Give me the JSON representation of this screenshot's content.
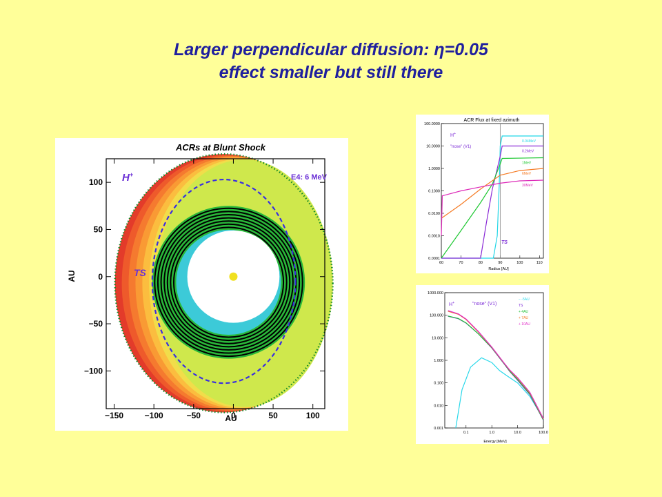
{
  "slide": {
    "title_line1": "Larger perpendicular diffusion: η=0.05",
    "title_line2": "effect smaller but  still there"
  },
  "colors": {
    "background": "#ffff99",
    "title": "#1f1f9e",
    "label_purple": "#6a2fd6",
    "shock_dash": "#3a2ee0"
  },
  "chart_data": [
    {
      "type": "heatmap",
      "title": "ACRs at Blunt Shock",
      "xlabel": "AU",
      "ylabel": "AU",
      "species_label": "H",
      "species_sup": "+",
      "energy_label": "E4: 6 MeV",
      "shock_label": "TS",
      "xlim": [
        -160,
        115
      ],
      "ylim": [
        -140,
        125
      ],
      "x_ticks": [
        "−150",
        "−100",
        "−50",
        "0",
        "50",
        "100"
      ],
      "x_tick_values": [
        -150,
        -100,
        -50,
        0,
        50,
        100
      ],
      "y_ticks": [
        "100",
        "50",
        "0",
        "−50",
        "−100"
      ],
      "y_tick_values": [
        100,
        50,
        0,
        -50,
        -100
      ],
      "sun_position": [
        0,
        0
      ],
      "inner_boundary_radius": 58,
      "termination_shock": {
        "cx": -12,
        "cy": -5,
        "rx": 90,
        "ry": 108
      },
      "outer_boundary": {
        "cx": -12,
        "cy": -7,
        "rx": 137,
        "ry": 137
      },
      "black_contours": {
        "cx": -6,
        "cy": -6,
        "radii": [
          69,
          73,
          77,
          81,
          85,
          89,
          93
        ]
      },
      "color_bands": [
        "#e33b2a",
        "#ee5a2b",
        "#f57a2f",
        "#f99a34",
        "#fbbd3f",
        "#f1dd4a",
        "#cfe84c"
      ],
      "inner_colors": [
        "#2ab83a",
        "#3ccad8"
      ]
    },
    {
      "type": "line",
      "title": "ACR Flux at fixed azimuth",
      "xlabel": "Radius [AU]",
      "ylabel": "",
      "species_label": "H",
      "species_sup": "+",
      "annotation": "\"nose\" (V1)",
      "shock_label": "TS",
      "x_scale": "linear",
      "y_scale": "log",
      "xlim": [
        60,
        112
      ],
      "ylim": [
        0.0001,
        100
      ],
      "x_ticks": [
        "60",
        "70",
        "80",
        "90",
        "100",
        "110"
      ],
      "x_tick_values": [
        60,
        70,
        80,
        90,
        100,
        110
      ],
      "y_ticks": [
        "100.0000",
        "10.0000",
        "1.0000",
        "0.1000",
        "0.0100",
        "0.0010",
        "0.0001"
      ],
      "y_tick_values": [
        100,
        10,
        1,
        0.1,
        0.01,
        0.001,
        0.0001
      ],
      "shock_x": 90,
      "series": [
        {
          "name": "0.04MeV",
          "color": "#22d6e6",
          "x": [
            60,
            86.5,
            88.5,
            89.5,
            90,
            91,
            112
          ],
          "y": [
            0.0001,
            0.0001,
            0.001,
            0.2,
            10,
            28,
            28
          ]
        },
        {
          "name": "0.2MeV",
          "color": "#8a2ad6",
          "x": [
            60,
            80,
            83,
            86,
            90,
            91,
            112
          ],
          "y": [
            0.0001,
            0.0001,
            0.004,
            0.12,
            3.5,
            10,
            10
          ]
        },
        {
          "name": "1MeV",
          "color": "#1ec832",
          "x": [
            60,
            70,
            80,
            86,
            90,
            91,
            112
          ],
          "y": [
            0.0001,
            0.0017,
            0.03,
            0.2,
            1.6,
            2.8,
            3
          ]
        },
        {
          "name": "6MeV",
          "color": "#f57a23",
          "x": [
            60,
            70,
            80,
            90,
            100,
            112
          ],
          "y": [
            0.006,
            0.025,
            0.12,
            0.5,
            0.8,
            1
          ]
        },
        {
          "name": "30MeV",
          "color": "#dd2ab8",
          "x": [
            60,
            60.5,
            70,
            80,
            90,
            100,
            112
          ],
          "y": [
            0.001,
            0.06,
            0.1,
            0.15,
            0.22,
            0.28,
            0.3
          ]
        }
      ]
    },
    {
      "type": "line",
      "title": "",
      "xlabel": "Energy [MeV]",
      "ylabel": "",
      "species_label": "H",
      "species_sup": "+",
      "annotation": "\"nose\" (V1)",
      "x_scale": "log",
      "y_scale": "log",
      "xlim": [
        0.015,
        100
      ],
      "ylim": [
        0.001,
        1000
      ],
      "x_ticks": [
        "0.1",
        "1.0",
        "10.0",
        "100.0"
      ],
      "x_tick_values": [
        0.1,
        1,
        10,
        100
      ],
      "y_ticks": [
        "1000.000",
        "100.000",
        "10.000",
        "1.000",
        "0.100",
        "0.010",
        "0.001"
      ],
      "y_tick_values": [
        1000,
        100,
        10,
        1,
        0.1,
        0.01,
        0.001
      ],
      "series": [
        {
          "name": "-5AU",
          "legend_symbol": "−",
          "color": "#28d8ea",
          "x": [
            0.04,
            0.07,
            0.15,
            0.4,
            1,
            2,
            4,
            10,
            30,
            100
          ],
          "y": [
            0.001,
            0.05,
            0.5,
            1.3,
            0.8,
            0.35,
            0.2,
            0.1,
            0.025,
            0.0025
          ]
        },
        {
          "name": "TS",
          "legend_symbol": "",
          "color": "#7a28d6",
          "x": [
            0.02,
            0.05,
            0.1,
            0.3,
            1,
            3,
            5,
            10,
            30,
            100
          ],
          "y": [
            90,
            70,
            45,
            15,
            3.5,
            0.7,
            0.32,
            0.13,
            0.03,
            0.0022
          ]
        },
        {
          "name": "4AU",
          "legend_symbol": "+",
          "color": "#22c238",
          "x": [
            0.02,
            0.05,
            0.1,
            0.3,
            1,
            3,
            5,
            10,
            30,
            100
          ],
          "y": [
            92,
            72,
            46,
            15,
            3.6,
            0.72,
            0.33,
            0.14,
            0.032,
            0.0023
          ]
        },
        {
          "name": "7AU",
          "legend_symbol": "+",
          "color": "#f07a22",
          "x": [
            0.02,
            0.05,
            0.1,
            0.3,
            1,
            3,
            5,
            10,
            30,
            100
          ],
          "y": [
            150,
            110,
            65,
            18,
            3.8,
            0.75,
            0.36,
            0.16,
            0.036,
            0.0025
          ]
        },
        {
          "name": "10AU",
          "legend_symbol": "+",
          "color": "#e02ac8",
          "x": [
            0.02,
            0.05,
            0.1,
            0.3,
            1,
            3,
            5,
            10,
            30,
            100
          ],
          "y": [
            160,
            115,
            68,
            19,
            3.9,
            0.76,
            0.37,
            0.17,
            0.038,
            0.0026
          ]
        }
      ]
    }
  ]
}
